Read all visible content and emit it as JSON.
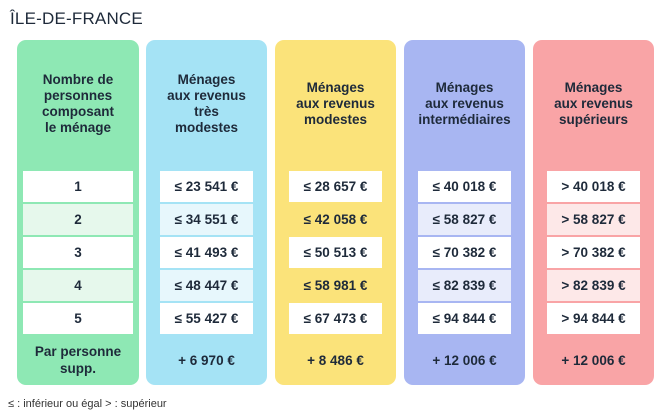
{
  "title": "ÎLE-DE-FRANCE",
  "legend": "≤ : inférieur ou égal > : supérieur",
  "columns": [
    {
      "id": "persons",
      "header": "Nombre de\npersonnes\ncomposant\nle ménage",
      "bg": "#8ee8b4",
      "rows": [
        "1",
        "2",
        "3",
        "4",
        "5",
        "Par personne\nsupp."
      ]
    },
    {
      "id": "tres-modestes",
      "header": "Ménages\naux revenus\ntrès\nmodestes",
      "bg": "#a5e3f5",
      "rows": [
        "≤ 23 541 €",
        "≤ 34 551 €",
        "≤ 41 493 €",
        "≤ 48 447 €",
        "≤ 55 427 €",
        "+ 6 970 €"
      ]
    },
    {
      "id": "modestes",
      "header": "Ménages\naux revenus\nmodestes",
      "bg": "#fbe37a",
      "rows": [
        "≤ 28 657 €",
        "≤ 42 058 €",
        "≤ 50 513 €",
        "≤ 58 981 €",
        "≤ 67 473 €",
        "+ 8 486 €"
      ]
    },
    {
      "id": "intermediaires",
      "header": "Ménages\naux revenus\nintermédiaires",
      "bg": "#a8b6f2",
      "rows": [
        "≤ 40 018 €",
        "≤ 58 827 €",
        "≤ 70 382 €",
        "≤ 82 839 €",
        "≤ 94 844 €",
        "+ 12 006 €"
      ]
    },
    {
      "id": "superieurs",
      "header": "Ménages\naux revenus\nsupérieurs",
      "bg": "#f9a4a6",
      "rows": [
        "> 40 018 €",
        "> 58 827 €",
        "> 70 382 €",
        "> 82 839 €",
        "> 94 844 €",
        "+ 12 006 €"
      ]
    }
  ],
  "row_tints": {
    "persons": [
      "#ffffff",
      "#e6f8ec",
      "#ffffff",
      "#e6f8ec",
      "#ffffff"
    ],
    "tres-modestes": [
      "#ffffff",
      "#e7f7fc",
      "#ffffff",
      "#e7f7fc",
      "#ffffff"
    ],
    "modestes": [
      "#ffffff",
      "#fbe37a",
      "#ffffff",
      "#fbe37a",
      "#ffffff"
    ],
    "intermediaires": [
      "#ffffff",
      "#e8ecfb",
      "#ffffff",
      "#e8ecfb",
      "#ffffff"
    ],
    "superieurs": [
      "#ffffff",
      "#fde8e8",
      "#ffffff",
      "#fde8e8",
      "#ffffff"
    ]
  }
}
